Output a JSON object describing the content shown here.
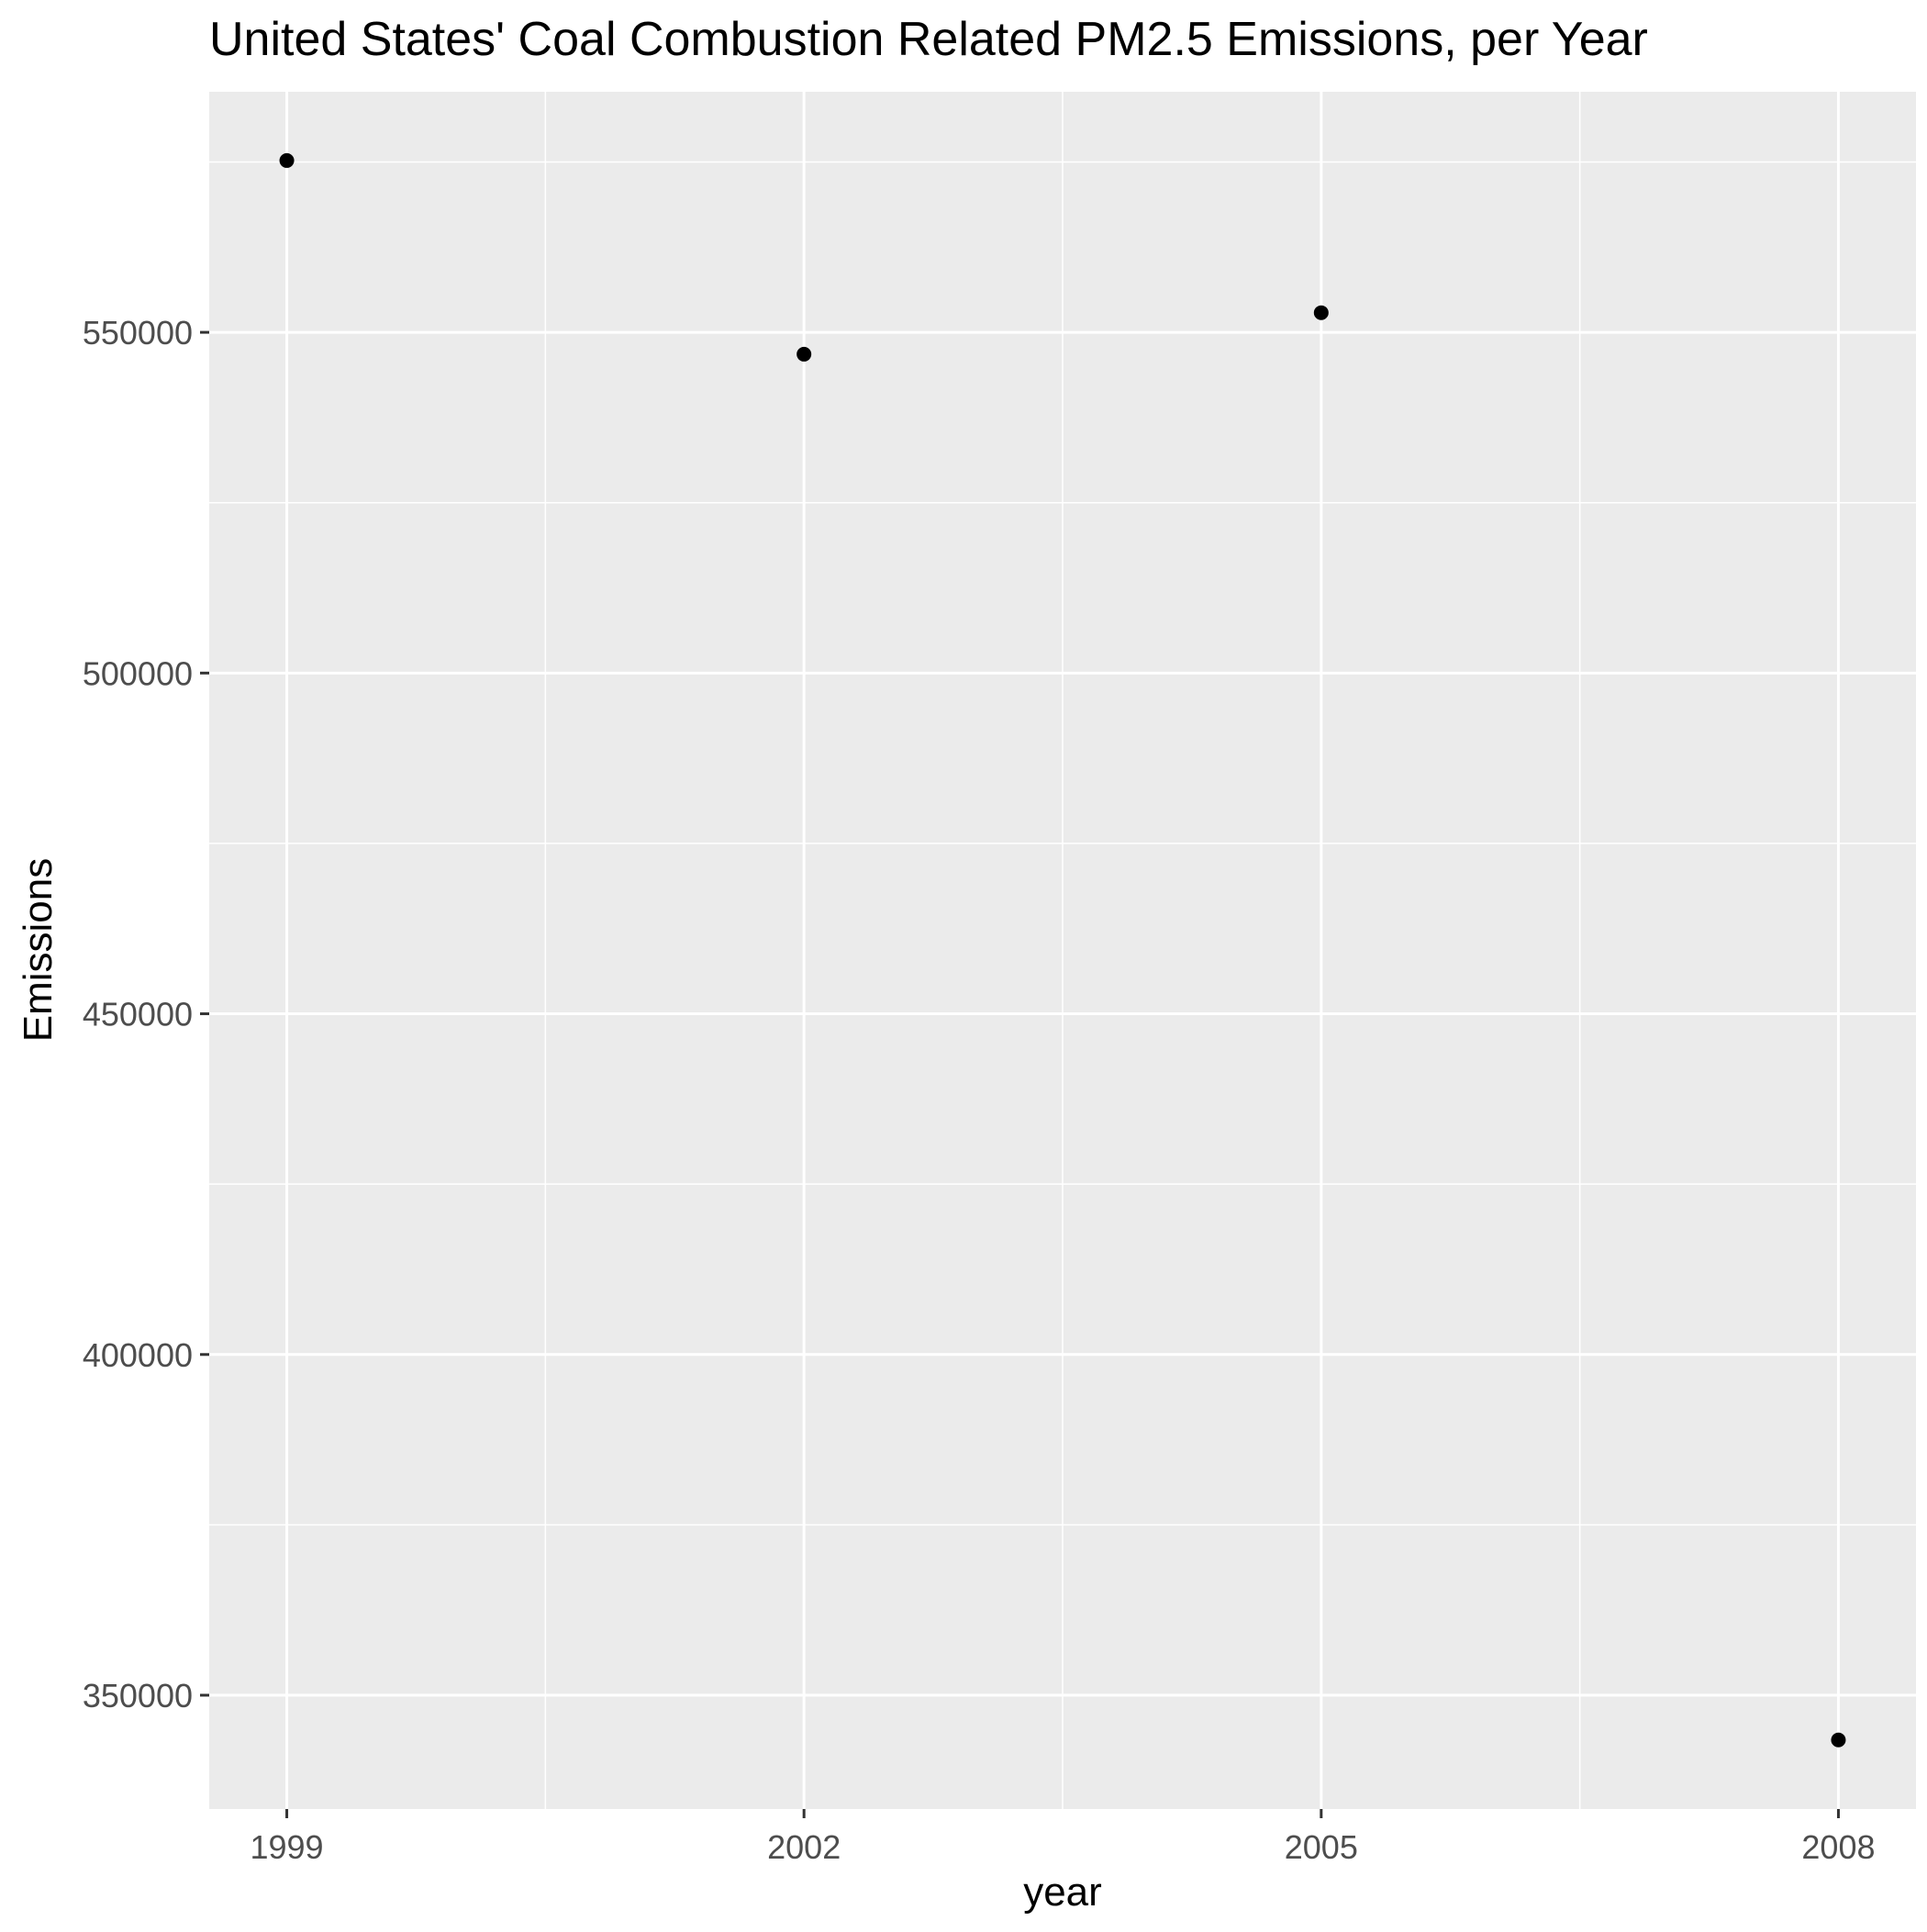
{
  "chart_data": {
    "type": "scatter",
    "title": "United States' Coal Combustion Related PM2.5 Emissions, per Year",
    "xlabel": "year",
    "ylabel": "Emissions",
    "x": [
      1999,
      2002,
      2005,
      2008
    ],
    "y": [
      575207,
      546789,
      552881,
      343432
    ],
    "xticks": [
      "1999",
      "2002",
      "2005",
      "2008"
    ],
    "yticks": [
      "350000",
      "400000",
      "450000",
      "500000",
      "550000"
    ],
    "xlim": [
      1998.55,
      2008.45
    ],
    "ylim": [
      333300,
      585300
    ],
    "grid": true,
    "legend": "none",
    "colors": {
      "panel_background": "#EBEBEB",
      "grid": "#FFFFFF",
      "points": "#000000",
      "tick_text": "#4D4D4D"
    }
  }
}
